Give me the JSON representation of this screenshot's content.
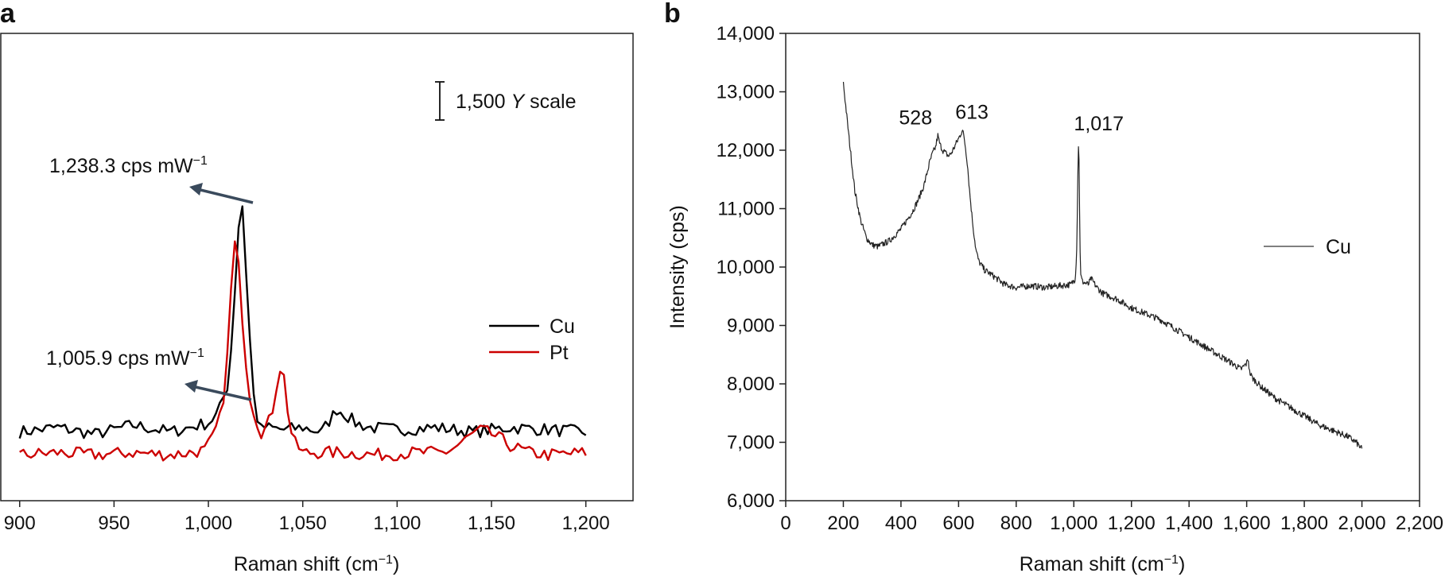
{
  "chart_data": [
    {
      "panel": "a",
      "type": "line",
      "xlabel_main": "Raman shift (cm",
      "xlabel_sup": "−1",
      "xlabel_end": ")",
      "ylabel": "",
      "xlim": [
        890,
        1225
      ],
      "x_ticks": [
        900,
        950,
        1000,
        1050,
        1100,
        1150,
        1200
      ],
      "x_tick_labels": [
        "900",
        "950",
        "1,000",
        "1,050",
        "1,100",
        "1,150",
        "1,200"
      ],
      "scale_bar": {
        "value": 1500,
        "label_pre": "1,500 ",
        "label_italic": "Y",
        "label_post": " scale"
      },
      "annotations": [
        {
          "text": "1,238.3 cps mW",
          "sup": "−1",
          "series": "Cu"
        },
        {
          "text": "1,005.9 cps mW",
          "sup": "−1",
          "series": "Pt"
        }
      ],
      "legend": [
        {
          "name": "Cu",
          "color": "#000000"
        },
        {
          "name": "Pt",
          "color": "#cc0000"
        }
      ],
      "legend_position": "right",
      "series": [
        {
          "name": "Cu",
          "color": "#000000",
          "x": [
            900,
            920,
            940,
            960,
            980,
            990,
            1000,
            1005,
            1010,
            1012,
            1014,
            1016,
            1017,
            1018,
            1019,
            1020,
            1022,
            1024,
            1026,
            1028,
            1030,
            1040,
            1050,
            1060,
            1065,
            1068,
            1072,
            1078,
            1085,
            1100,
            1120,
            1140,
            1160,
            1180,
            1200
          ],
          "y": [
            1.5,
            1.6,
            1.45,
            1.65,
            1.5,
            1.6,
            1.7,
            1.9,
            2.5,
            3.3,
            4.6,
            6.0,
            6.45,
            6.45,
            6.2,
            5.0,
            3.5,
            2.3,
            1.8,
            1.55,
            1.6,
            1.55,
            1.6,
            1.5,
            1.8,
            2.0,
            1.9,
            1.7,
            1.6,
            1.55,
            1.6,
            1.5,
            1.6,
            1.55,
            1.5
          ]
        },
        {
          "name": "Pt",
          "color": "#cc0000",
          "x": [
            900,
            920,
            940,
            960,
            980,
            990,
            998,
            1002,
            1006,
            1009,
            1011,
            1013,
            1014,
            1016,
            1018,
            1020,
            1022,
            1025,
            1028,
            1031,
            1034,
            1036,
            1038,
            1039,
            1041,
            1043,
            1046,
            1050,
            1070,
            1090,
            1110,
            1125,
            1130,
            1135,
            1140,
            1145,
            1150,
            1155,
            1160,
            1170,
            1180,
            1200
          ],
          "y": [
            1.0,
            1.05,
            1.0,
            1.05,
            1.0,
            1.05,
            1.1,
            1.35,
            1.8,
            2.5,
            3.8,
            5.4,
            5.6,
            5.1,
            4.0,
            3.0,
            2.3,
            1.8,
            1.5,
            1.6,
            2.0,
            2.5,
            2.9,
            3.0,
            2.4,
            1.6,
            1.25,
            1.05,
            1.05,
            1.0,
            1.05,
            1.05,
            1.15,
            1.3,
            1.45,
            1.55,
            1.45,
            1.35,
            1.2,
            1.05,
            1.0,
            1.05
          ]
        }
      ]
    },
    {
      "panel": "b",
      "type": "line",
      "xlabel_main": "Raman shift (cm",
      "xlabel_sup": "−1",
      "xlabel_end": ")",
      "ylabel": "Intensity (cps)",
      "xlim": [
        0,
        2200
      ],
      "ylim": [
        6000,
        14000
      ],
      "x_ticks": [
        0,
        200,
        400,
        600,
        800,
        1000,
        1200,
        1400,
        1600,
        1800,
        2000,
        2200
      ],
      "x_tick_labels": [
        "0",
        "200",
        "400",
        "600",
        "800",
        "1,000",
        "1,200",
        "1,400",
        "1,600",
        "1,800",
        "2,000",
        "2,200"
      ],
      "y_ticks": [
        6000,
        7000,
        8000,
        9000,
        10000,
        11000,
        12000,
        13000,
        14000
      ],
      "y_tick_labels": [
        "6,000",
        "7,000",
        "8,000",
        "9,000",
        "10,000",
        "11,000",
        "12,000",
        "13,000",
        "14,000"
      ],
      "peak_labels": [
        {
          "text": "528",
          "x": 528,
          "y": 12250
        },
        {
          "text": "613",
          "x": 613,
          "y": 12350
        },
        {
          "text": "1,017",
          "x": 1017,
          "y": 12150
        }
      ],
      "legend": [
        {
          "name": "Cu",
          "color": "#555555"
        }
      ],
      "legend_position": "right",
      "series": [
        {
          "name": "Cu",
          "color": "#222222",
          "x": [
            200,
            220,
            240,
            260,
            280,
            300,
            320,
            340,
            360,
            380,
            400,
            420,
            440,
            460,
            480,
            500,
            510,
            520,
            528,
            535,
            545,
            555,
            565,
            575,
            585,
            595,
            605,
            613,
            620,
            630,
            640,
            650,
            660,
            670,
            690,
            720,
            760,
            800,
            850,
            900,
            950,
            990,
            1005,
            1010,
            1013,
            1015,
            1017,
            1019,
            1021,
            1024,
            1030,
            1050,
            1060,
            1080,
            1100,
            1150,
            1200,
            1250,
            1300,
            1350,
            1400,
            1450,
            1500,
            1550,
            1580,
            1600,
            1605,
            1610,
            1620,
            1650,
            1700,
            1750,
            1800,
            1850,
            1900,
            1950,
            1980,
            2000
          ],
          "y": [
            13150,
            12200,
            11300,
            10800,
            10500,
            10380,
            10350,
            10400,
            10450,
            10550,
            10650,
            10800,
            10950,
            11150,
            11400,
            11800,
            11950,
            12050,
            12250,
            12100,
            12000,
            11950,
            11900,
            11950,
            12050,
            12150,
            12250,
            12350,
            12200,
            11800,
            11200,
            10700,
            10300,
            10100,
            9950,
            9850,
            9700,
            9650,
            9680,
            9650,
            9680,
            9700,
            9800,
            10300,
            11200,
            12000,
            12150,
            11500,
            10500,
            9850,
            9750,
            9700,
            9800,
            9650,
            9550,
            9450,
            9300,
            9200,
            9100,
            8950,
            8800,
            8650,
            8500,
            8350,
            8250,
            8350,
            8450,
            8200,
            8100,
            7950,
            7750,
            7600,
            7450,
            7300,
            7200,
            7100,
            7000,
            6880
          ]
        }
      ]
    }
  ]
}
